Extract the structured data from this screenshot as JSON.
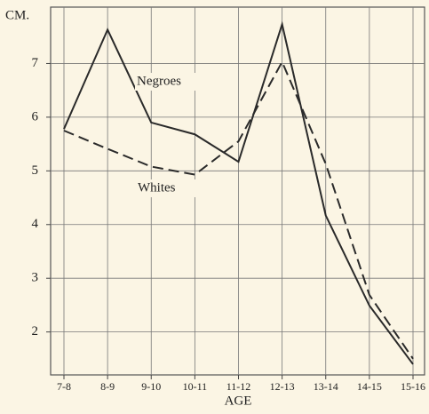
{
  "chart_data": {
    "type": "line",
    "y_label": "CM.",
    "x_label": "AGE",
    "categories": [
      "7-8",
      "8-9",
      "9-10",
      "10-11",
      "11-12",
      "12-13",
      "13-14",
      "14-15",
      "15-16"
    ],
    "series": [
      {
        "name": "Negroes",
        "color": "#2a2a2a",
        "dashed": false,
        "values": [
          5.78,
          7.63,
          5.9,
          5.68,
          5.17,
          7.73,
          4.17,
          2.49,
          1.4
        ]
      },
      {
        "name": "Whites",
        "color": "#2a2a2a",
        "dashed": true,
        "values": [
          5.75,
          5.41,
          5.08,
          4.93,
          5.55,
          7.03,
          5.13,
          2.69,
          1.5
        ]
      }
    ],
    "ylim": [
      1.2,
      8.05
    ],
    "yticks": [
      2,
      3,
      4,
      5,
      6,
      7
    ],
    "grid": true
  }
}
